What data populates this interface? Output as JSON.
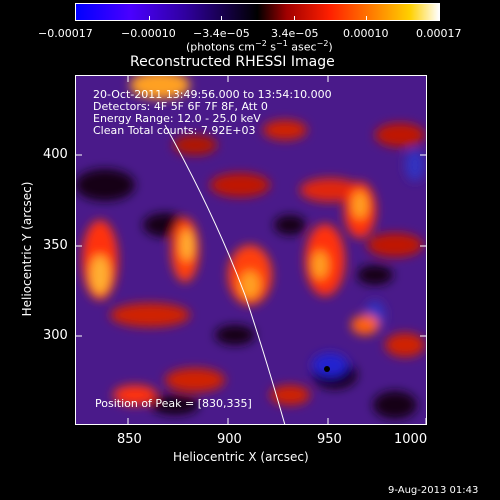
{
  "colorbar": {
    "tick_labels": [
      "−0.00017",
      "−0.00010",
      "−3.4e−05",
      "3.4e−05",
      "0.00010",
      "0.00017"
    ],
    "unit_prefix": "(photons cm",
    "unit_exp1": "−2",
    "unit_mid": " s",
    "unit_exp2": "−1",
    "unit_mid2": " asec",
    "unit_exp3": "−2",
    "unit_suffix": ")",
    "colors": [
      "#0000ff",
      "#5a00ff",
      "#000000",
      "#ff0000",
      "#ffa000",
      "#ffffff"
    ]
  },
  "plot": {
    "title": "Reconstructed RHESSI Image",
    "xlabel": "Heliocentric X (arcsec)",
    "ylabel": "Heliocentric Y (arcsec)",
    "x_ticks": [
      "850",
      "900",
      "950",
      "1000"
    ],
    "y_ticks": [
      "300",
      "350",
      "400"
    ],
    "info": {
      "line1": "20-Oct-2011 13:49:56.000 to 13:54:10.000",
      "line2": "Detectors: 4F 5F 6F 7F 8F, Att 0",
      "line3": "Energy Range: 12.0 - 25.0 keV",
      "line4": "Clean     Total counts: 7.92E+03"
    },
    "peak_label": "Position of Peak = [830,335]"
  },
  "footer": {
    "timestamp": "9-Aug-2013 01:43"
  }
}
